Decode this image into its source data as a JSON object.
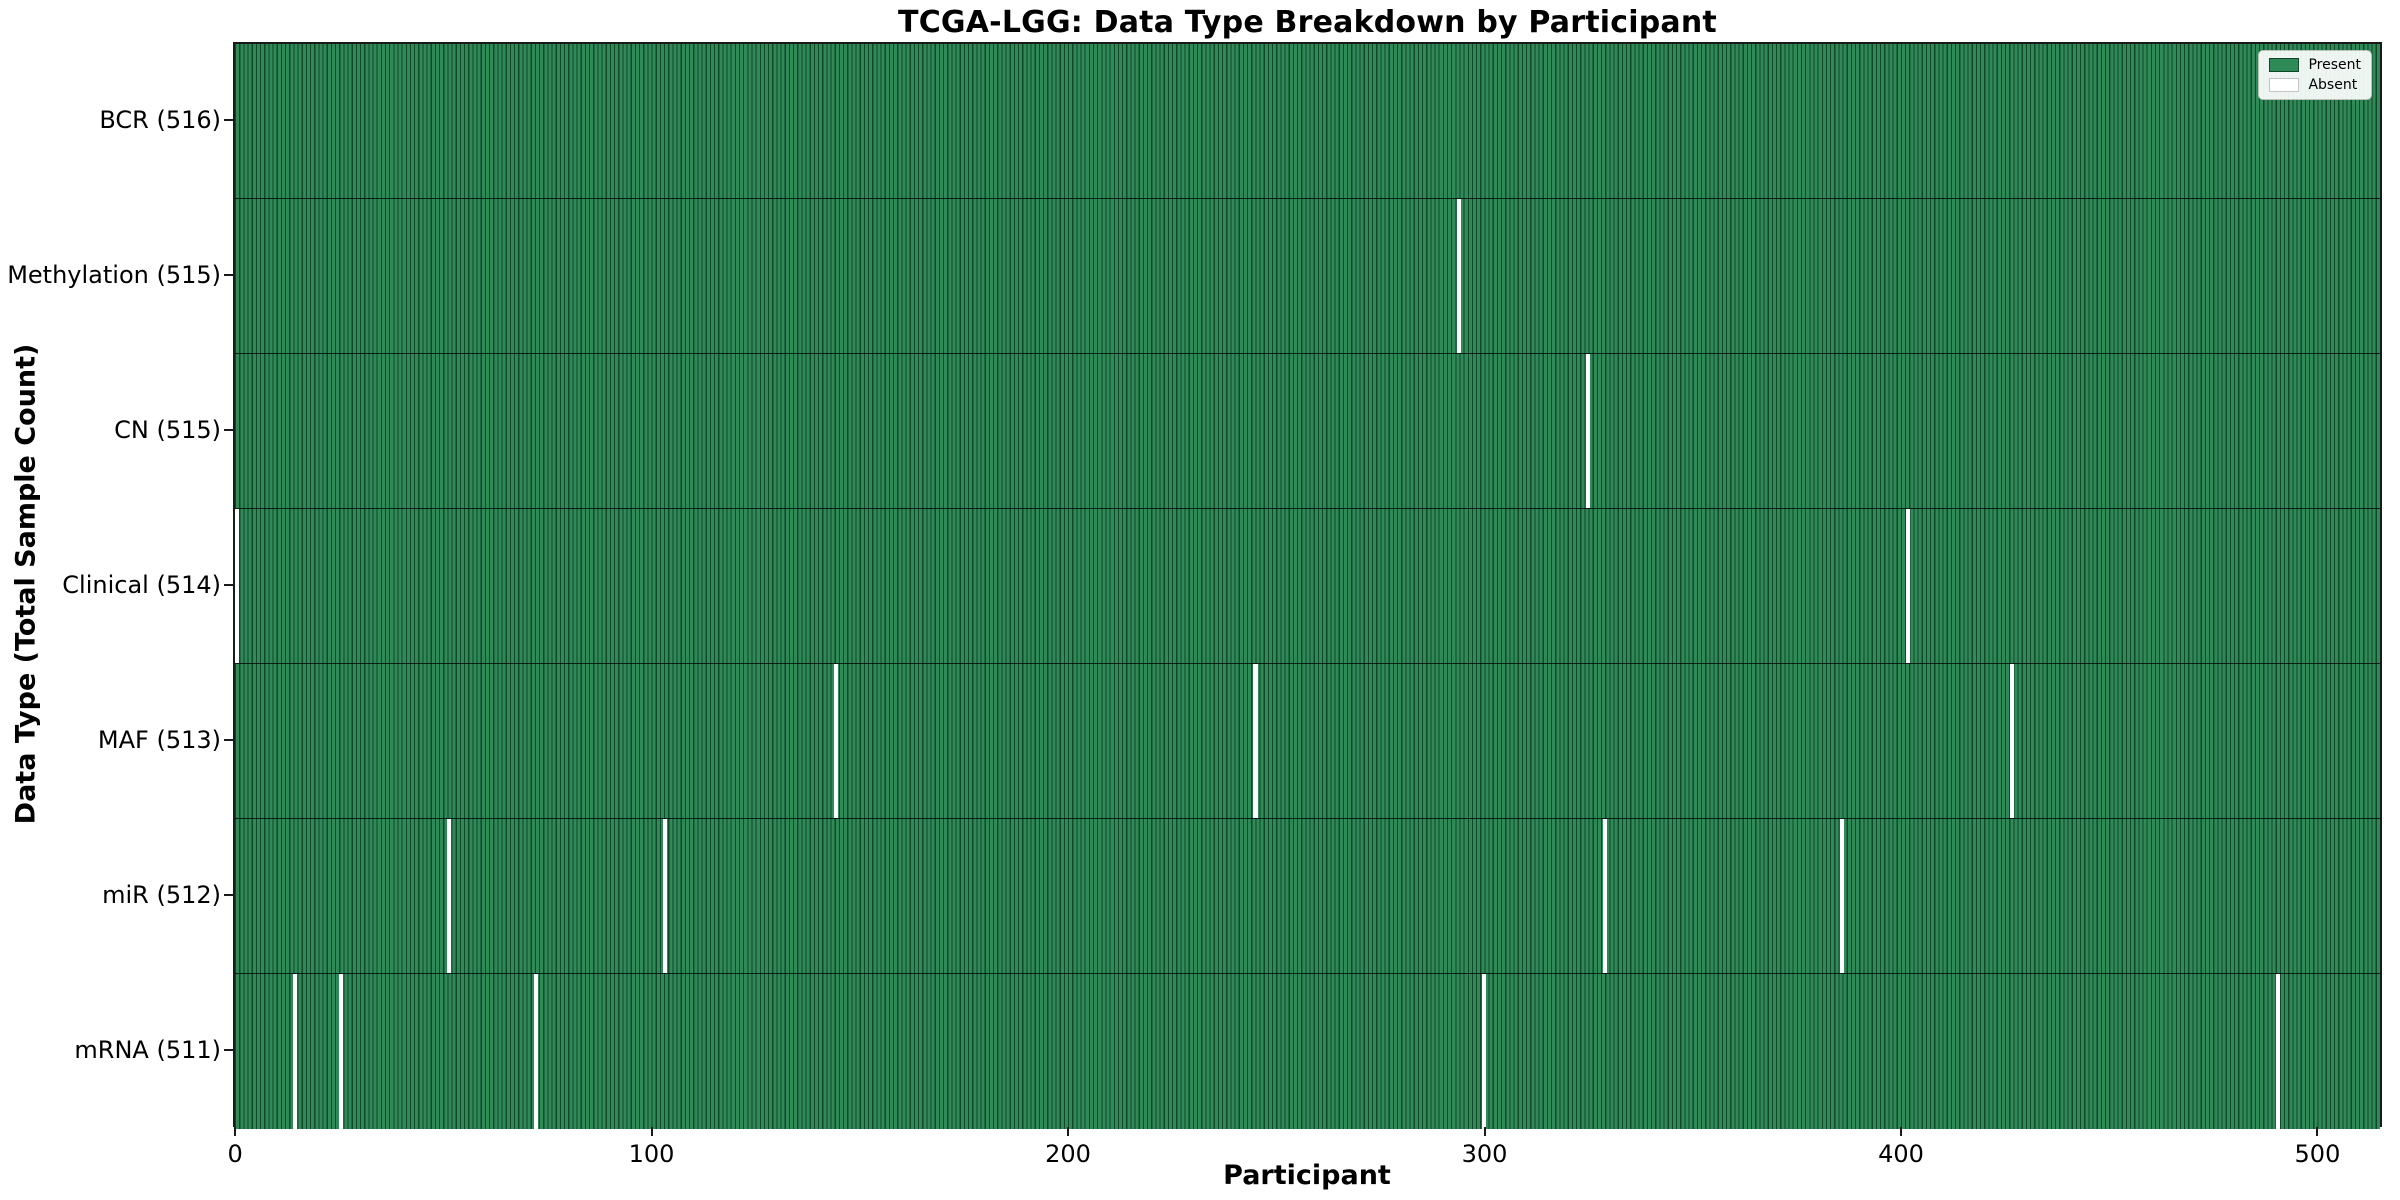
{
  "chart_data": {
    "type": "heatmap",
    "title": "TCGA-LGG: Data Type Breakdown by Participant",
    "xlabel": "Participant",
    "ylabel": "Data Type (Total Sample Count)",
    "n_participants": 516,
    "x_ticks": [
      0,
      100,
      200,
      300,
      400,
      500
    ],
    "xlim": [
      -0.5,
      515.5
    ],
    "grid": false,
    "legend_position": "upper right",
    "legend": [
      {
        "label": "Present",
        "color": "#2e8b57"
      },
      {
        "label": "Absent",
        "color": "#ffffff"
      }
    ],
    "colors": {
      "present": "#2e8b57",
      "absent": "#ffffff",
      "bar_edge": "#14462a",
      "row_separator": "#1a1a1a",
      "spine": "#1a1a1a"
    },
    "rows": [
      {
        "label": "BCR (516)",
        "total": 516,
        "absent_participants": []
      },
      {
        "label": "Methylation (515)",
        "total": 515,
        "absent_participants": [
          294
        ]
      },
      {
        "label": "CN (515)",
        "total": 515,
        "absent_participants": [
          325
        ]
      },
      {
        "label": "Clinical (514)",
        "total": 514,
        "absent_participants": [
          0,
          402
        ]
      },
      {
        "label": "MAF (513)",
        "total": 513,
        "absent_participants": [
          144,
          245,
          427
        ]
      },
      {
        "label": "miR (512)",
        "total": 512,
        "absent_participants": [
          51,
          103,
          329,
          386
        ]
      },
      {
        "label": "mRNA (511)",
        "total": 511,
        "absent_participants": [
          14,
          25,
          72,
          300,
          491
        ]
      }
    ]
  }
}
